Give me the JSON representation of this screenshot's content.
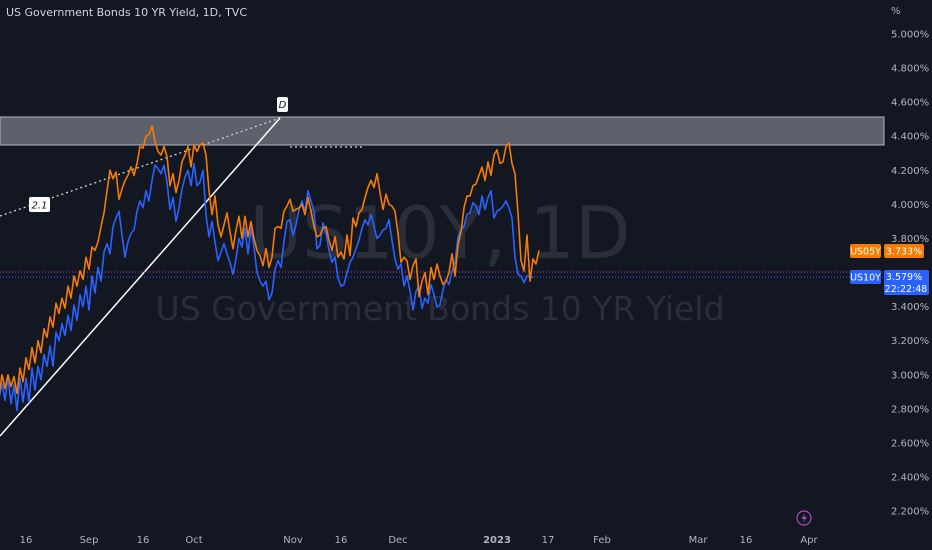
{
  "title": "US Government Bonds 10 YR Yield, 1D, TVC",
  "watermark": {
    "symbol": "US10Y, 1D",
    "description": "US Government Bonds 10 YR Yield"
  },
  "annotations": {
    "wave_d": "D",
    "ratio": "2.1"
  },
  "colors": {
    "background": "#131722",
    "us10y": "#2962ff",
    "us05y": "#f57c00",
    "zone": "#787b86",
    "text": "#b2b5be"
  },
  "chart_data": {
    "type": "line",
    "y_unit_label": "%",
    "ylim": [
      2.2,
      5.1
    ],
    "y_ticks": [
      "5.000%",
      "4.800%",
      "4.600%",
      "4.400%",
      "4.200%",
      "4.000%",
      "3.800%",
      "3.400%",
      "3.200%",
      "3.000%",
      "2.800%",
      "2.600%",
      "2.400%",
      "2.200%"
    ],
    "x_ticks": [
      "16",
      "Sep",
      "16",
      "Oct",
      "Nov",
      "16",
      "Dec",
      "2023",
      "17",
      "Feb",
      "Mar",
      "16",
      "Apr"
    ],
    "x_tick_index": [
      11,
      32,
      50,
      67,
      100,
      116,
      135,
      168,
      185,
      203,
      235,
      251,
      272
    ],
    "grid": false,
    "series": [
      {
        "name": "US10Y",
        "last_label": "3.579%",
        "countdown": "22:22:48",
        "values": [
          2.82,
          2.9,
          2.86,
          2.95,
          2.85,
          2.99,
          2.83,
          2.94,
          2.79,
          2.98,
          2.84,
          2.98,
          2.84,
          3.04,
          2.91,
          3.05,
          2.97,
          3.12,
          3.05,
          3.17,
          3.05,
          3.25,
          3.2,
          3.3,
          3.23,
          3.35,
          3.26,
          3.41,
          3.32,
          3.47,
          3.4,
          3.52,
          3.38,
          3.58,
          3.48,
          3.63,
          3.55,
          3.72,
          3.77,
          3.71,
          3.87,
          3.92,
          3.96,
          3.82,
          3.69,
          3.78,
          3.83,
          3.85,
          3.96,
          4.02,
          3.98,
          4.08,
          4.02,
          4.14,
          4.23,
          4.21,
          4.18,
          4.23,
          4.13,
          3.97,
          4.04,
          3.9,
          3.98,
          4.09,
          4.16,
          4.2,
          4.11,
          4.24,
          4.11,
          4.13,
          4.2,
          3.94,
          3.81,
          3.9,
          3.78,
          3.67,
          3.72,
          3.77,
          3.71,
          3.66,
          3.59,
          3.68,
          3.8,
          3.75,
          3.86,
          3.71,
          3.86,
          3.75,
          3.6,
          3.55,
          3.52,
          3.55,
          3.44,
          3.48,
          3.62,
          3.67,
          3.63,
          3.78,
          3.9,
          3.91,
          3.82,
          3.88,
          3.97,
          4.02,
          3.96,
          4.08,
          4.02,
          3.96,
          3.74,
          3.76,
          3.89,
          3.83,
          3.73,
          3.66,
          3.69,
          3.57,
          3.52,
          3.53,
          3.6,
          3.66,
          3.69,
          3.74,
          3.79,
          3.86,
          3.91,
          3.88,
          3.94,
          3.87,
          3.8,
          3.82,
          3.85,
          3.86,
          3.91,
          3.79,
          3.68,
          3.62,
          3.65,
          3.52,
          3.58,
          3.49,
          3.38,
          3.49,
          3.52,
          3.39,
          3.45,
          3.42,
          3.53,
          3.47,
          3.4,
          3.41,
          3.5,
          3.56,
          3.53,
          3.61,
          3.66,
          3.81,
          3.85,
          3.87,
          3.94,
          3.95,
          4.01,
          3.99,
          3.94,
          4.05,
          3.97,
          4.04,
          4.08,
          3.92,
          3.96,
          3.97,
          3.99,
          4.02,
          3.98,
          3.92,
          3.69,
          3.59,
          3.58,
          3.54,
          3.58,
          3.58,
          3.57
        ]
      },
      {
        "name": "US05Y",
        "last_label": "3.733%",
        "values": [
          2.92,
          2.96,
          2.88,
          3.0,
          2.92,
          3.0,
          2.93,
          2.99,
          2.89,
          3.04,
          2.96,
          3.1,
          3.03,
          3.16,
          3.07,
          3.2,
          3.13,
          3.27,
          3.22,
          3.34,
          3.28,
          3.42,
          3.36,
          3.45,
          3.39,
          3.52,
          3.45,
          3.58,
          3.52,
          3.61,
          3.56,
          3.69,
          3.62,
          3.75,
          3.73,
          3.78,
          3.87,
          3.95,
          4.08,
          4.2,
          4.15,
          4.19,
          4.03,
          4.09,
          4.14,
          4.17,
          4.22,
          4.17,
          4.24,
          4.34,
          4.33,
          4.4,
          4.41,
          4.46,
          4.37,
          4.31,
          4.29,
          4.34,
          4.28,
          4.11,
          4.18,
          4.07,
          4.14,
          4.25,
          4.29,
          4.34,
          4.22,
          4.35,
          4.31,
          4.35,
          4.36,
          4.29,
          4.08,
          3.94,
          4.05,
          3.88,
          3.81,
          3.88,
          3.95,
          3.84,
          3.74,
          3.85,
          3.93,
          3.8,
          3.93,
          3.81,
          3.9,
          3.8,
          3.73,
          3.7,
          3.64,
          3.74,
          3.63,
          3.69,
          3.86,
          3.87,
          3.86,
          3.96,
          3.99,
          4.03,
          3.96,
          3.97,
          3.98,
          4.0,
          3.94,
          4.04,
          3.96,
          3.87,
          3.81,
          3.82,
          3.86,
          3.87,
          3.79,
          3.73,
          3.81,
          3.69,
          3.72,
          3.68,
          3.82,
          3.7,
          3.92,
          3.87,
          3.95,
          3.97,
          4.04,
          4.1,
          4.14,
          4.1,
          4.18,
          4.07,
          3.97,
          4.06,
          4.0,
          3.99,
          3.96,
          3.83,
          3.66,
          3.69,
          3.67,
          3.56,
          3.64,
          3.68,
          3.46,
          3.55,
          3.6,
          3.47,
          3.63,
          3.56,
          3.65,
          3.58,
          3.53,
          3.55,
          3.6,
          3.71,
          3.58,
          3.76,
          3.84,
          3.98,
          4.05,
          4.05,
          4.11,
          4.12,
          4.17,
          4.22,
          4.14,
          4.25,
          4.17,
          4.29,
          4.32,
          4.24,
          4.25,
          4.34,
          4.36,
          4.24,
          4.18,
          3.95,
          3.67,
          3.61,
          3.82,
          3.55,
          3.68,
          3.65,
          3.73
        ]
      }
    ]
  }
}
